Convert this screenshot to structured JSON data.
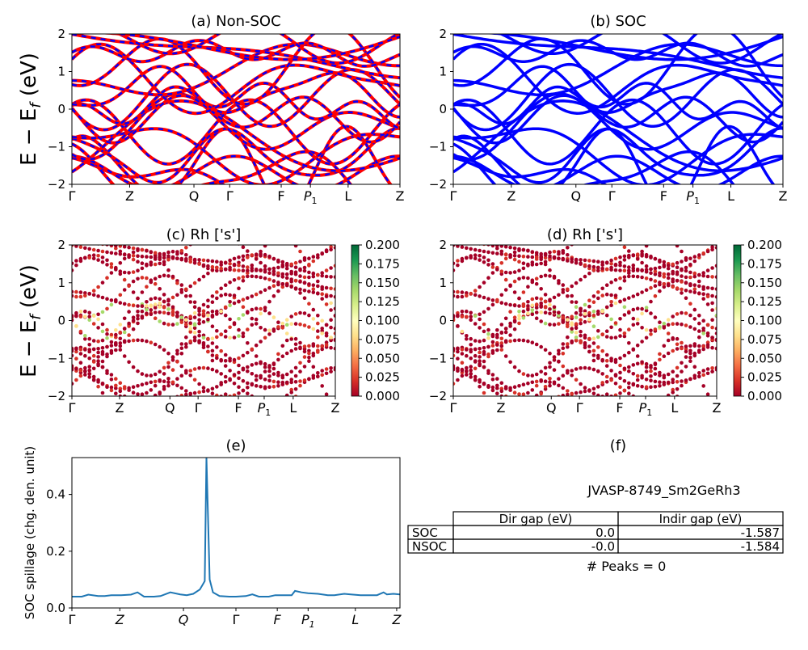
{
  "figure_id": "JVASP-8749_Sm2GeRh3",
  "path_labels": [
    "Γ",
    "Z",
    "Q",
    "Γ",
    "F",
    "P1",
    "L",
    "Z"
  ],
  "colorbar_ticks": [
    "0.200",
    "0.175",
    "0.150",
    "0.125",
    "0.100",
    "0.075",
    "0.050",
    "0.025",
    "0.000"
  ],
  "energy_ticks": [
    "2",
    "1",
    "0",
    "−1",
    "−2"
  ],
  "chart_data": [
    {
      "type": "line",
      "panel": "a",
      "title": "(a) Non-SOC",
      "ylabel": "E − E_f (eV)",
      "ylim": [
        -2,
        2
      ],
      "series_styles": [
        "red solid",
        "blue dashed"
      ],
      "x_ticks": [
        "Γ",
        "Z",
        "Q",
        "Γ",
        "F",
        "P1",
        "L",
        "Z"
      ]
    },
    {
      "type": "line",
      "panel": "b",
      "title": "(b) SOC",
      "ylim": [
        -2,
        2
      ],
      "x_ticks": [
        "Γ",
        "Z",
        "Q",
        "Γ",
        "F",
        "P1",
        "L",
        "Z"
      ]
    },
    {
      "type": "scatter",
      "panel": "c",
      "title": "(c)  Rh ['s']",
      "ylabel": "E − E_f (eV)",
      "ylim": [
        -2,
        2
      ],
      "colorbar_range": [
        0,
        0.2
      ],
      "colormap": "RdYlGn",
      "x_ticks": [
        "Γ",
        "Z",
        "Q",
        "Γ",
        "F",
        "P1",
        "L",
        "Z"
      ]
    },
    {
      "type": "scatter",
      "panel": "d",
      "title": "(d) Rh ['s']",
      "ylim": [
        -2,
        2
      ],
      "colorbar_range": [
        0,
        0.2
      ],
      "colormap": "RdYlGn",
      "x_ticks": [
        "Γ",
        "Z",
        "Q",
        "Γ",
        "F",
        "P1",
        "L",
        "Z"
      ]
    },
    {
      "type": "line",
      "panel": "e",
      "title": "(e)",
      "ylabel": "SOC spillage (chg. den. unit)",
      "ylim": [
        0,
        0.53
      ],
      "y_ticks": [
        "0.0",
        "0.2",
        "0.4"
      ],
      "x_ticks": [
        "Γ",
        "Z",
        "Q",
        "Γ",
        "F",
        "P1",
        "L",
        "Z"
      ],
      "x": [
        0,
        0.03,
        0.05,
        0.08,
        0.1,
        0.12,
        0.15,
        0.18,
        0.2,
        0.22,
        0.25,
        0.27,
        0.3,
        0.33,
        0.35,
        0.37,
        0.39,
        0.4,
        0.405,
        0.41,
        0.42,
        0.43,
        0.45,
        0.48,
        0.5,
        0.53,
        0.55,
        0.57,
        0.6,
        0.62,
        0.65,
        0.67,
        0.68,
        0.7,
        0.72,
        0.75,
        0.78,
        0.8,
        0.83,
        0.85,
        0.88,
        0.9,
        0.93,
        0.95,
        0.96,
        0.98,
        1.0
      ],
      "y": [
        0.04,
        0.04,
        0.047,
        0.042,
        0.042,
        0.045,
        0.045,
        0.047,
        0.055,
        0.04,
        0.04,
        0.042,
        0.055,
        0.048,
        0.045,
        0.05,
        0.065,
        0.085,
        0.095,
        0.53,
        0.1,
        0.055,
        0.042,
        0.04,
        0.04,
        0.042,
        0.048,
        0.04,
        0.04,
        0.045,
        0.045,
        0.045,
        0.06,
        0.055,
        0.052,
        0.05,
        0.045,
        0.045,
        0.05,
        0.048,
        0.045,
        0.045,
        0.045,
        0.055,
        0.048,
        0.05,
        0.048
      ]
    },
    {
      "type": "table",
      "panel": "f",
      "title": "(f)",
      "columns": [
        "",
        "Dir gap (eV)",
        "Indir gap (eV)"
      ],
      "rows": [
        [
          "SOC",
          "0.0",
          "-1.587"
        ],
        [
          "NSOC",
          "-0.0",
          "-1.584"
        ]
      ],
      "footnote": "# Peaks = 0"
    }
  ]
}
